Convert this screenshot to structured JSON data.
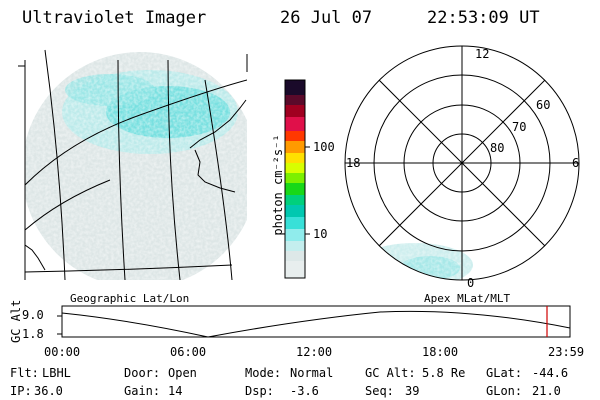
{
  "header": {
    "title": "Ultraviolet Imager",
    "date": "26 Jul 07",
    "time": "22:53:09 UT"
  },
  "colorbar": {
    "unit_label": "photon cm⁻²s⁻¹",
    "ticks": [
      "100",
      "10"
    ]
  },
  "polar": {
    "mlt_labels": {
      "top": "12",
      "left": "18",
      "right": "6",
      "bottom": "0"
    },
    "lat_labels": [
      "60",
      "70",
      "80"
    ]
  },
  "captions": {
    "left": "Geographic Lat/Lon",
    "right": "Apex MLat/MLT"
  },
  "timeline": {
    "ylabel": "GC Alt",
    "y_ticks": [
      "9.0",
      "1.8"
    ],
    "x_ticks": [
      "00:00",
      "06:00",
      "12:00",
      "18:00",
      "23:59"
    ]
  },
  "info": {
    "rows": [
      [
        {
          "label": "Flt:",
          "value": "LBHL"
        },
        {
          "label": "Door:",
          "value": "Open"
        },
        {
          "label": "Mode:",
          "value": "Normal"
        },
        {
          "label": "GC Alt:",
          "value": "5.8 Re"
        },
        {
          "label": "GLat:",
          "value": "-44.6"
        }
      ],
      [
        {
          "label": "IP:",
          "value": "36.0"
        },
        {
          "label": "Gain:",
          "value": "14"
        },
        {
          "label": "Dsp:",
          "value": "-3.6"
        },
        {
          "label": "Seq:",
          "value": "39"
        },
        {
          "label": "GLon:",
          "value": "21.0"
        }
      ]
    ]
  },
  "colors": {
    "aurora": "#62dcdc",
    "haze": "#d8e4e4",
    "cursor": "#d00000"
  }
}
